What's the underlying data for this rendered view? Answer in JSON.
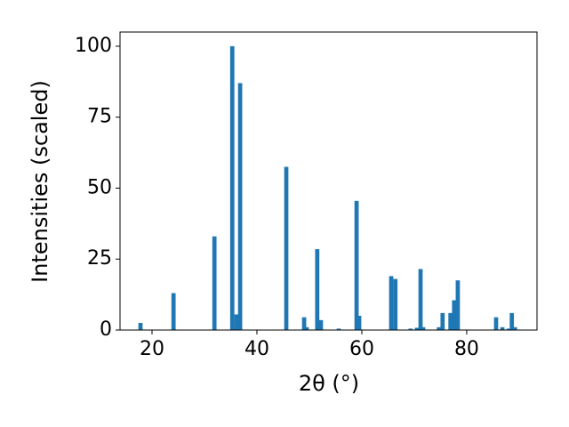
{
  "chart_data": {
    "type": "bar",
    "xlabel": "2θ (°)",
    "ylabel": "Intensities (scaled)",
    "color": "#1f77b4",
    "bar_width": 0.8,
    "x": [
      17.8,
      24.1,
      31.9,
      35.3,
      36.1,
      36.8,
      45.6,
      49.0,
      49.5,
      51.5,
      52.2,
      55.6,
      59.0,
      59.5,
      65.6,
      66.4,
      69.3,
      70.5,
      71.2,
      71.7,
      74.7,
      75.4,
      76.9,
      77.6,
      78.3,
      85.6,
      86.8,
      88.0,
      88.6,
      89.2
    ],
    "values": [
      2.5,
      13,
      33,
      100,
      5.5,
      87,
      57.5,
      4.5,
      1,
      28.5,
      3.5,
      0.5,
      45.5,
      5,
      19,
      18,
      0.5,
      0.8,
      21.5,
      1,
      1,
      6,
      6,
      10.5,
      17.5,
      4.5,
      1,
      0.5,
      6,
      1
    ],
    "xlim": [
      13.9,
      93.4
    ],
    "xticks": [
      20,
      40,
      60,
      80
    ],
    "ylim": [
      0,
      105
    ],
    "yticks": [
      0,
      25,
      50,
      75,
      100
    ]
  }
}
